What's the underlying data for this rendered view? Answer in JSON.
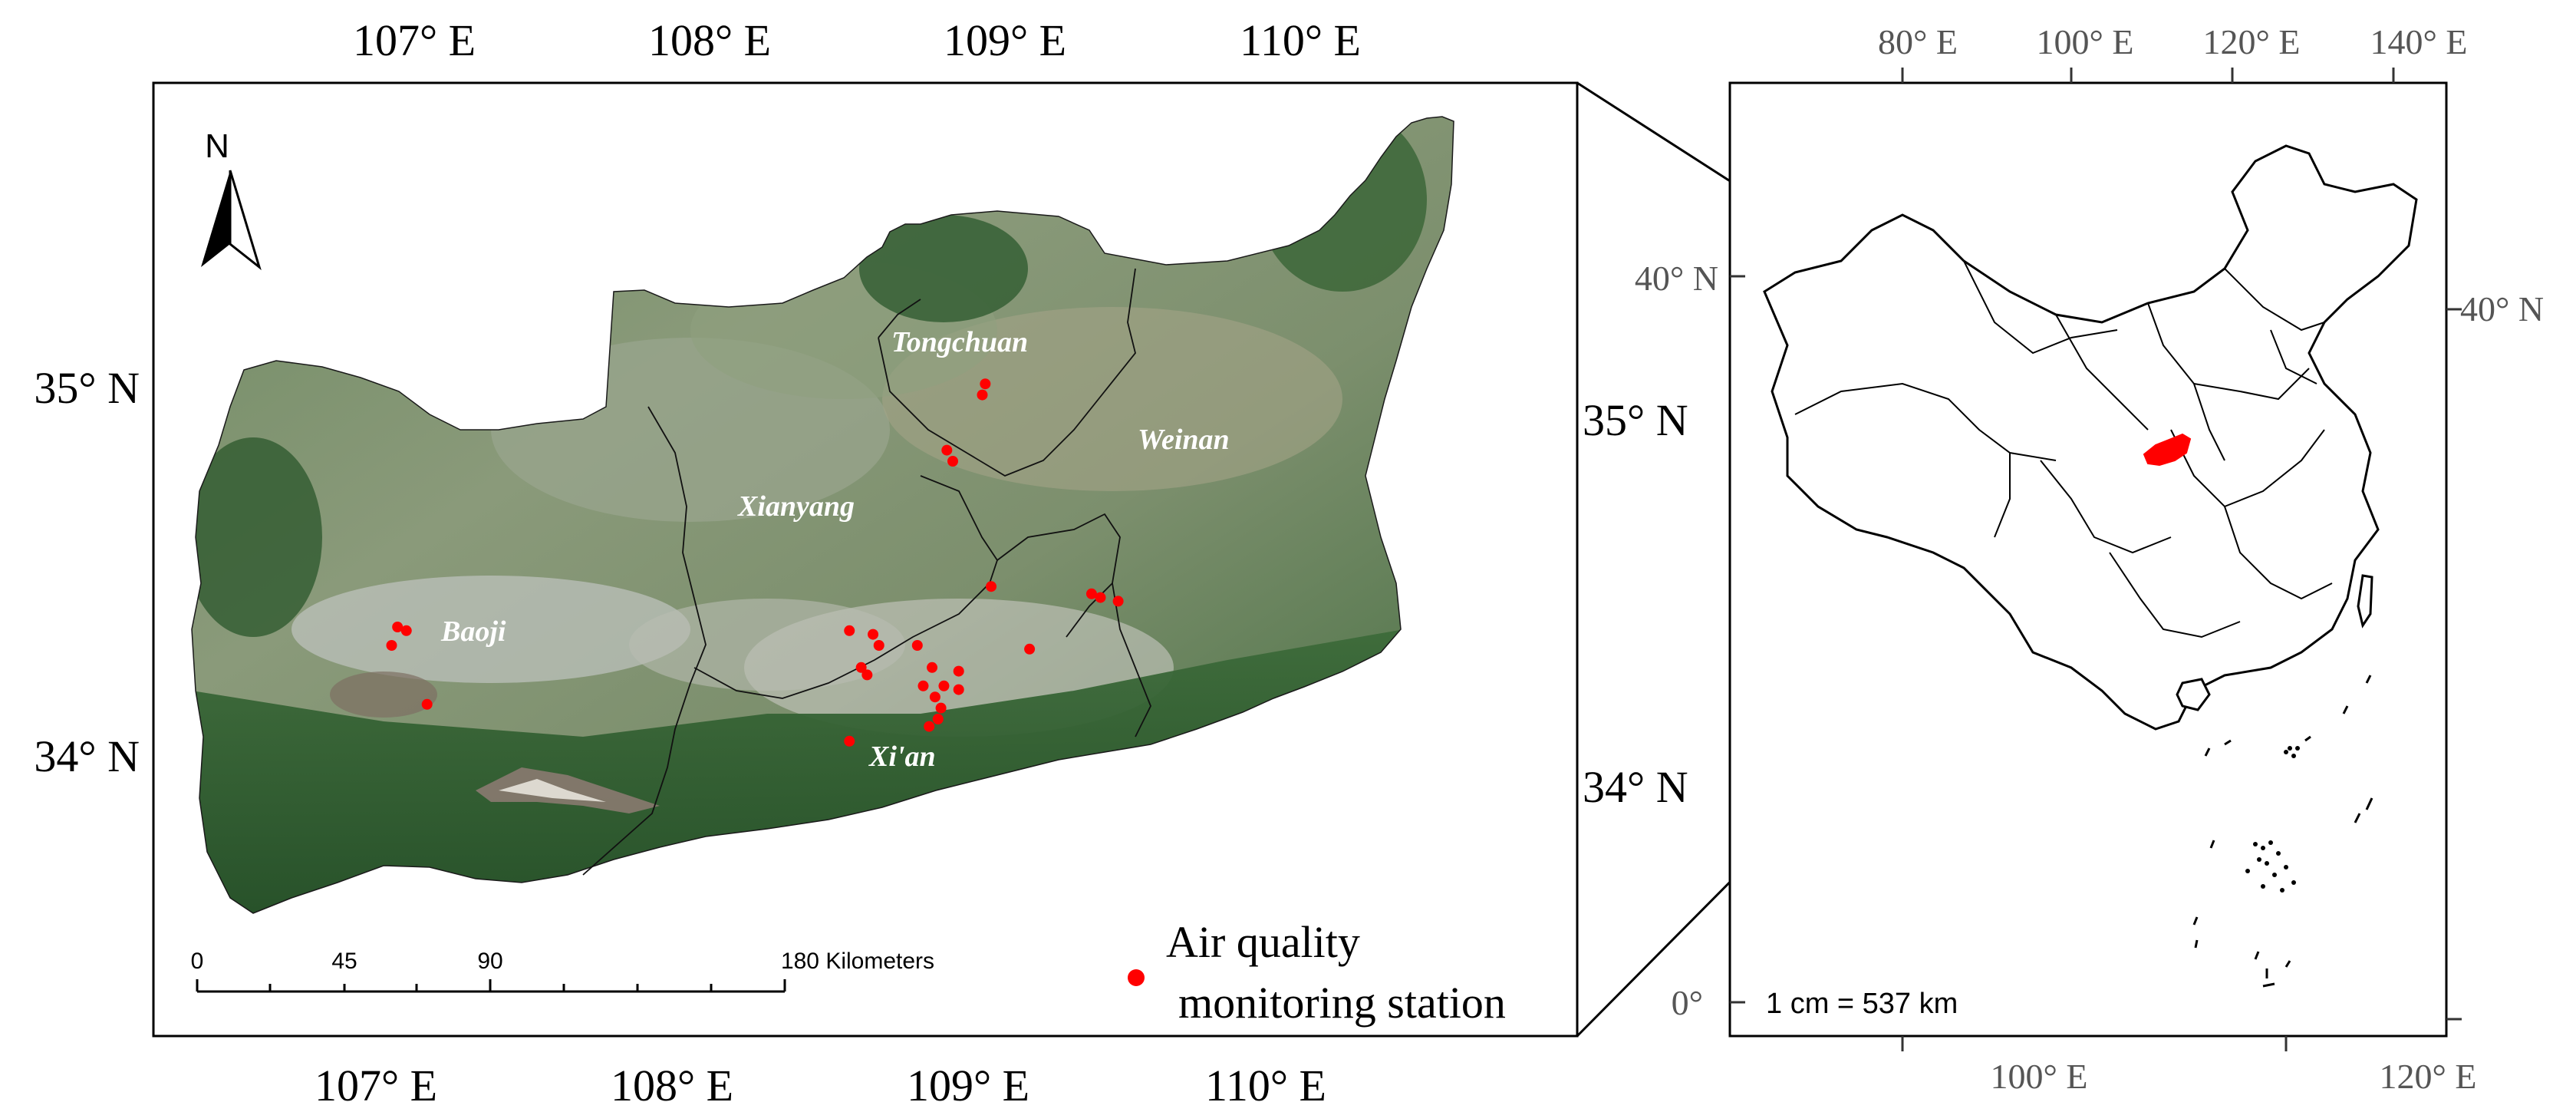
{
  "main_map": {
    "top_lon_labels": [
      "107° E",
      "108° E",
      "109° E",
      "110° E"
    ],
    "bottom_lon_labels": [
      "107° E",
      "108° E",
      "109° E",
      "110° E"
    ],
    "left_lat_labels": [
      "35° N",
      "34° N"
    ],
    "right_lat_labels": [
      "35° N",
      "34° N"
    ],
    "city_labels": [
      "Tongchuan",
      "Weinan",
      "Xianyang",
      "Baoji",
      "Xi'an"
    ],
    "north_arrow_label": "N",
    "scale_bar": {
      "ticks": [
        "0",
        "45",
        "90",
        "180 Kilometers"
      ]
    },
    "legend": {
      "line1": "Air quality",
      "line2": "monitoring station",
      "symbol_color": "#ff0000"
    },
    "stations": [
      {
        "lon": 109.1,
        "lat": 34.98
      },
      {
        "lon": 109.11,
        "lat": 35.01
      },
      {
        "lon": 108.98,
        "lat": 34.83
      },
      {
        "lon": 109.0,
        "lat": 34.8
      },
      {
        "lon": 107.12,
        "lat": 34.35
      },
      {
        "lon": 107.15,
        "lat": 34.34
      },
      {
        "lon": 107.1,
        "lat": 34.3
      },
      {
        "lon": 107.22,
        "lat": 34.14
      },
      {
        "lon": 108.65,
        "lat": 34.34
      },
      {
        "lon": 108.73,
        "lat": 34.33
      },
      {
        "lon": 108.75,
        "lat": 34.3
      },
      {
        "lon": 108.69,
        "lat": 34.24
      },
      {
        "lon": 108.71,
        "lat": 34.22
      },
      {
        "lon": 108.65,
        "lat": 34.04
      },
      {
        "lon": 108.88,
        "lat": 34.3
      },
      {
        "lon": 108.93,
        "lat": 34.24
      },
      {
        "lon": 109.02,
        "lat": 34.23
      },
      {
        "lon": 108.9,
        "lat": 34.19
      },
      {
        "lon": 108.97,
        "lat": 34.19
      },
      {
        "lon": 109.02,
        "lat": 34.18
      },
      {
        "lon": 108.94,
        "lat": 34.16
      },
      {
        "lon": 108.96,
        "lat": 34.13
      },
      {
        "lon": 108.95,
        "lat": 34.1
      },
      {
        "lon": 108.92,
        "lat": 34.08
      },
      {
        "lon": 109.13,
        "lat": 34.46
      },
      {
        "lon": 109.26,
        "lat": 34.29
      },
      {
        "lon": 109.47,
        "lat": 34.44
      },
      {
        "lon": 109.5,
        "lat": 34.43
      },
      {
        "lon": 109.56,
        "lat": 34.42
      }
    ]
  },
  "inset_map": {
    "top_lon_labels": [
      "80° E",
      "100° E",
      "120° E",
      "140° E"
    ],
    "bottom_lon_labels": [
      "100° E",
      "120° E"
    ],
    "left_lat_labels": [
      "40° N",
      "0°"
    ],
    "right_lat_labels": [
      "40° N"
    ],
    "scale_text": "1 cm = 537 km"
  },
  "colors": {
    "highlight": "#ff0000",
    "frame": "#000000",
    "gray_label": "#555555"
  }
}
